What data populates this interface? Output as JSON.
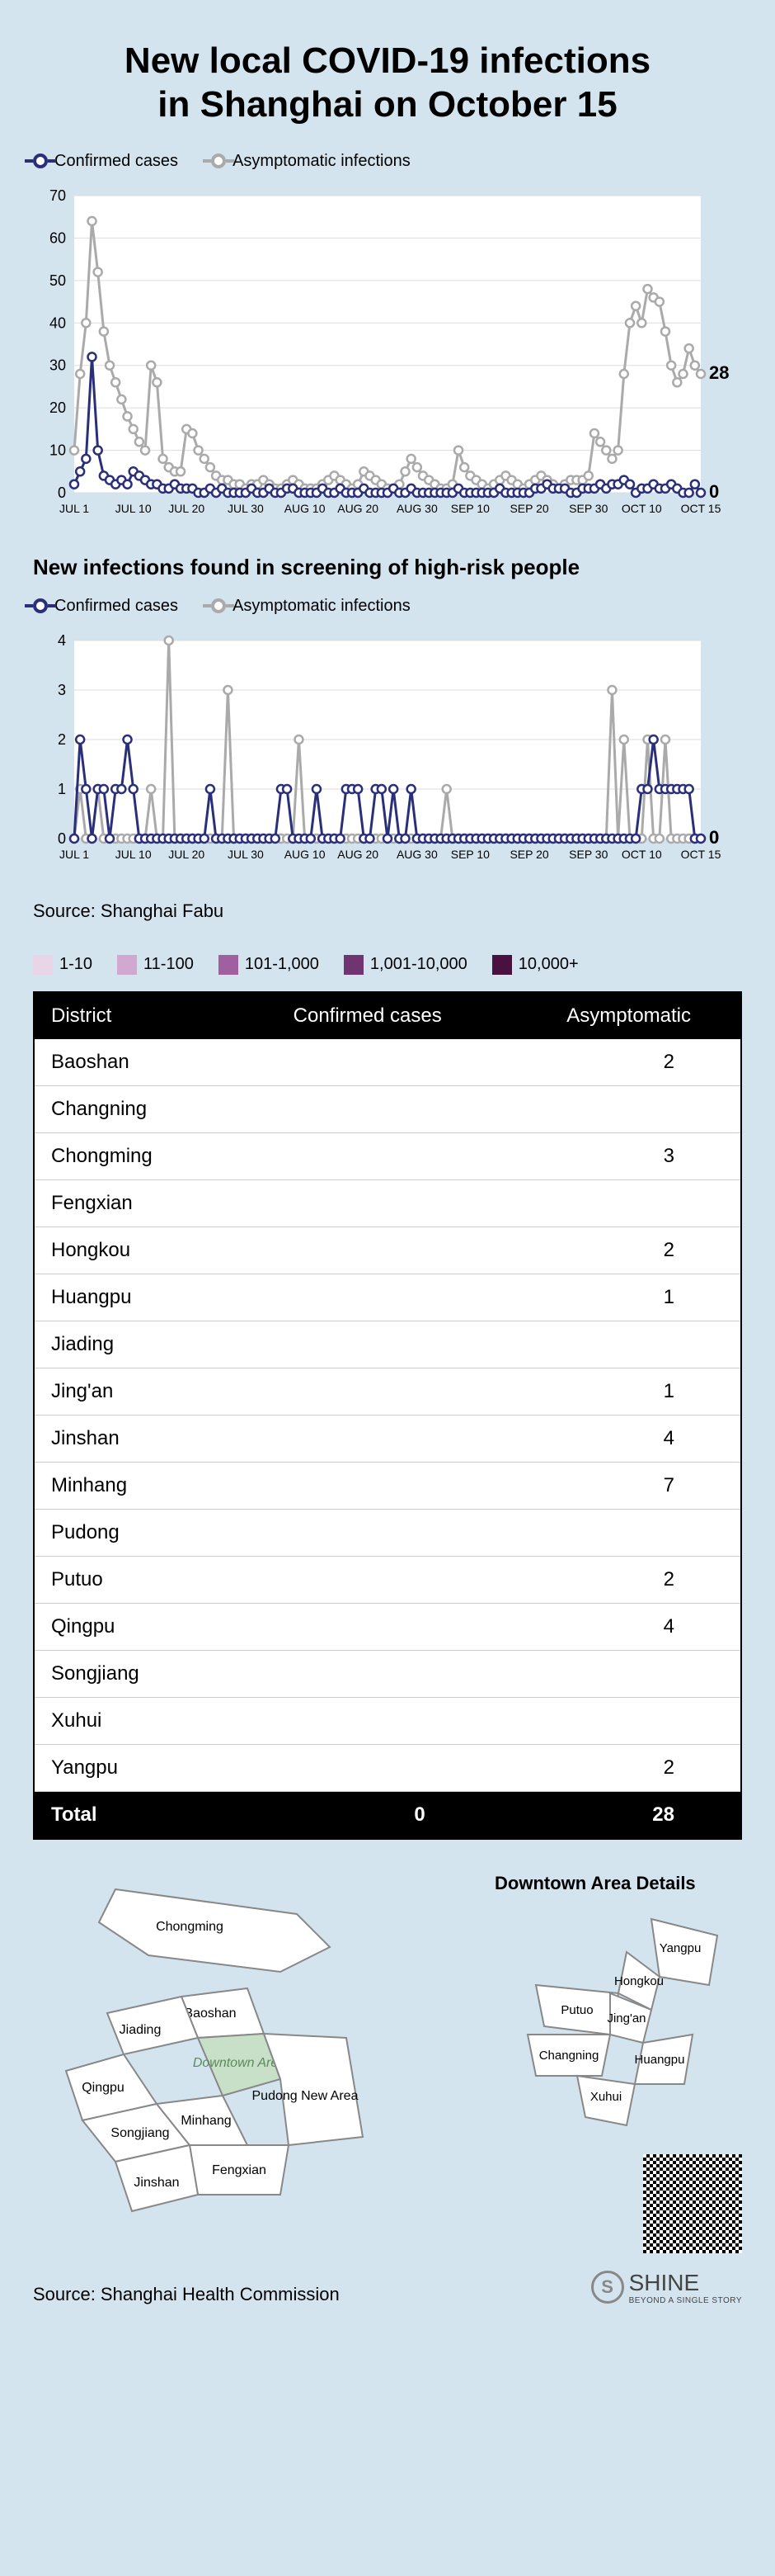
{
  "title_line1": "New local COVID-19 infections",
  "title_line2": "in Shanghai on October 15",
  "legend_confirmed": "Confirmed cases",
  "legend_asymptomatic": "Asymptomatic infections",
  "chart1": {
    "ylim": [
      0,
      70
    ],
    "ytick_step": 10,
    "xticks": [
      "JUL 1",
      "JUL 10",
      "JUL 20",
      "JUL 30",
      "AUG 10",
      "AUG 20",
      "AUG 30",
      "SEP 10",
      "SEP 20",
      "SEP 30",
      "OCT 10",
      "OCT 15"
    ],
    "end_labels": {
      "asymptomatic": "28",
      "confirmed": "0"
    },
    "colors": {
      "confirmed": "#2a2f7a",
      "asymptomatic": "#aaaaaa",
      "grid": "#dddddd",
      "bg": "#ffffff"
    },
    "line_width": 3,
    "marker_radius": 5,
    "confirmed": [
      2,
      5,
      8,
      32,
      10,
      4,
      3,
      2,
      3,
      2,
      5,
      4,
      3,
      2,
      2,
      1,
      1,
      2,
      1,
      1,
      1,
      0,
      0,
      1,
      0,
      1,
      0,
      0,
      0,
      0,
      1,
      0,
      0,
      1,
      0,
      0,
      1,
      1,
      0,
      0,
      0,
      0,
      1,
      0,
      0,
      1,
      0,
      0,
      0,
      1,
      0,
      0,
      0,
      0,
      1,
      0,
      0,
      1,
      0,
      0,
      0,
      0,
      0,
      0,
      0,
      1,
      0,
      0,
      0,
      0,
      0,
      0,
      1,
      0,
      0,
      0,
      0,
      0,
      1,
      1,
      2,
      1,
      1,
      1,
      0,
      0,
      1,
      1,
      1,
      2,
      1,
      2,
      2,
      3,
      2,
      0,
      1,
      1,
      2,
      1,
      1,
      2,
      1,
      0,
      0,
      2,
      0
    ],
    "asymptomatic": [
      10,
      28,
      40,
      64,
      52,
      38,
      30,
      26,
      22,
      18,
      15,
      12,
      10,
      30,
      26,
      8,
      6,
      5,
      5,
      15,
      14,
      10,
      8,
      6,
      4,
      3,
      3,
      2,
      2,
      1,
      2,
      2,
      3,
      2,
      1,
      1,
      2,
      3,
      2,
      1,
      1,
      1,
      2,
      3,
      4,
      3,
      2,
      1,
      2,
      5,
      4,
      3,
      2,
      1,
      1,
      2,
      5,
      8,
      6,
      4,
      3,
      2,
      1,
      1,
      2,
      10,
      6,
      4,
      3,
      2,
      1,
      2,
      3,
      4,
      3,
      2,
      1,
      2,
      3,
      4,
      3,
      2,
      1,
      2,
      3,
      3,
      3,
      4,
      14,
      12,
      10,
      8,
      10,
      28,
      40,
      44,
      40,
      48,
      46,
      45,
      38,
      30,
      26,
      28,
      34,
      30,
      28
    ]
  },
  "subheading": "New infections found in screening of high-risk people",
  "chart2": {
    "ylim": [
      0,
      4
    ],
    "ytick_step": 1,
    "xticks": [
      "JUL 1",
      "JUL 10",
      "JUL 20",
      "JUL 30",
      "AUG 10",
      "AUG 20",
      "AUG 30",
      "SEP 10",
      "SEP 20",
      "SEP 30",
      "OCT 10",
      "OCT 15"
    ],
    "end_labels": {
      "asymptomatic": "0",
      "confirmed": "0"
    },
    "colors": {
      "confirmed": "#2a2f7a",
      "asymptomatic": "#aaaaaa",
      "grid": "#dddddd",
      "bg": "#ffffff"
    },
    "line_width": 3,
    "marker_radius": 5,
    "confirmed": [
      0,
      2,
      1,
      0,
      1,
      1,
      0,
      1,
      1,
      2,
      1,
      0,
      0,
      0,
      0,
      0,
      0,
      0,
      0,
      0,
      0,
      0,
      0,
      1,
      0,
      0,
      0,
      0,
      0,
      0,
      0,
      0,
      0,
      0,
      0,
      1,
      1,
      0,
      0,
      0,
      0,
      1,
      0,
      0,
      0,
      0,
      1,
      1,
      1,
      0,
      0,
      1,
      1,
      0,
      1,
      0,
      0,
      1,
      0,
      0,
      0,
      0,
      0,
      0,
      0,
      0,
      0,
      0,
      0,
      0,
      0,
      0,
      0,
      0,
      0,
      0,
      0,
      0,
      0,
      0,
      0,
      0,
      0,
      0,
      0,
      0,
      0,
      0,
      0,
      0,
      0,
      0,
      0,
      0,
      0,
      0,
      1,
      1,
      2,
      1,
      1,
      1,
      1,
      1,
      1,
      0,
      0
    ],
    "asymptomatic": [
      0,
      1,
      0,
      0,
      1,
      0,
      0,
      0,
      0,
      0,
      0,
      0,
      0,
      1,
      0,
      0,
      4,
      0,
      0,
      0,
      0,
      0,
      0,
      0,
      0,
      0,
      3,
      0,
      0,
      0,
      0,
      0,
      0,
      0,
      0,
      0,
      0,
      0,
      2,
      0,
      0,
      0,
      0,
      0,
      0,
      0,
      0,
      0,
      0,
      0,
      0,
      0,
      0,
      0,
      0,
      0,
      0,
      0,
      0,
      0,
      0,
      0,
      0,
      1,
      0,
      0,
      0,
      0,
      0,
      0,
      0,
      0,
      0,
      0,
      0,
      0,
      0,
      0,
      0,
      0,
      0,
      0,
      0,
      0,
      0,
      0,
      0,
      0,
      0,
      0,
      0,
      3,
      0,
      2,
      0,
      0,
      0,
      2,
      0,
      0,
      2,
      0,
      0,
      0,
      0,
      0,
      0
    ]
  },
  "source1": "Source: Shanghai Fabu",
  "scale": [
    {
      "label": "1-10",
      "color": "#e8d5e8"
    },
    {
      "label": "11-100",
      "color": "#d0a8d0"
    },
    {
      "label": "101-1,000",
      "color": "#a060a0"
    },
    {
      "label": "1,001-10,000",
      "color": "#703570"
    },
    {
      "label": "10,000+",
      "color": "#4a1040"
    }
  ],
  "table": {
    "headers": [
      "District",
      "Confirmed cases",
      "Asymptomatic"
    ],
    "rows": [
      {
        "d": "Baoshan",
        "c": "",
        "a": "2"
      },
      {
        "d": "Changning",
        "c": "",
        "a": ""
      },
      {
        "d": "Chongming",
        "c": "",
        "a": "3"
      },
      {
        "d": "Fengxian",
        "c": "",
        "a": ""
      },
      {
        "d": "Hongkou",
        "c": "",
        "a": "2"
      },
      {
        "d": "Huangpu",
        "c": "",
        "a": "1"
      },
      {
        "d": "Jiading",
        "c": "",
        "a": ""
      },
      {
        "d": "Jing'an",
        "c": "",
        "a": "1"
      },
      {
        "d": "Jinshan",
        "c": "",
        "a": "4"
      },
      {
        "d": "Minhang",
        "c": "",
        "a": "7"
      },
      {
        "d": "Pudong",
        "c": "",
        "a": ""
      },
      {
        "d": "Putuo",
        "c": "",
        "a": "2"
      },
      {
        "d": "Qingpu",
        "c": "",
        "a": "4"
      },
      {
        "d": "Songjiang",
        "c": "",
        "a": ""
      },
      {
        "d": "Xuhui",
        "c": "",
        "a": ""
      },
      {
        "d": "Yangpu",
        "c": "",
        "a": "2"
      }
    ],
    "total": {
      "label": "Total",
      "c": "0",
      "a": "28"
    }
  },
  "map": {
    "title_right": "Downtown Area Details",
    "left_districts": [
      "Chongming",
      "Baoshan",
      "Jiading",
      "Qingpu",
      "Songjiang",
      "Minhang",
      "Fengxian",
      "Jinshan",
      "Pudong New Area",
      "Downtown Area"
    ],
    "right_districts": [
      "Yangpu",
      "Hongkou",
      "Putuo",
      "Jing'an",
      "Changning",
      "Huangpu",
      "Xuhui"
    ],
    "fill": "#ffffff",
    "stroke": "#888888",
    "downtown_fill": "#c8e0c8"
  },
  "source2": "Source: Shanghai Health Commission",
  "brand": "SHINE",
  "brand_sub": "BEYOND A SINGLE STORY"
}
